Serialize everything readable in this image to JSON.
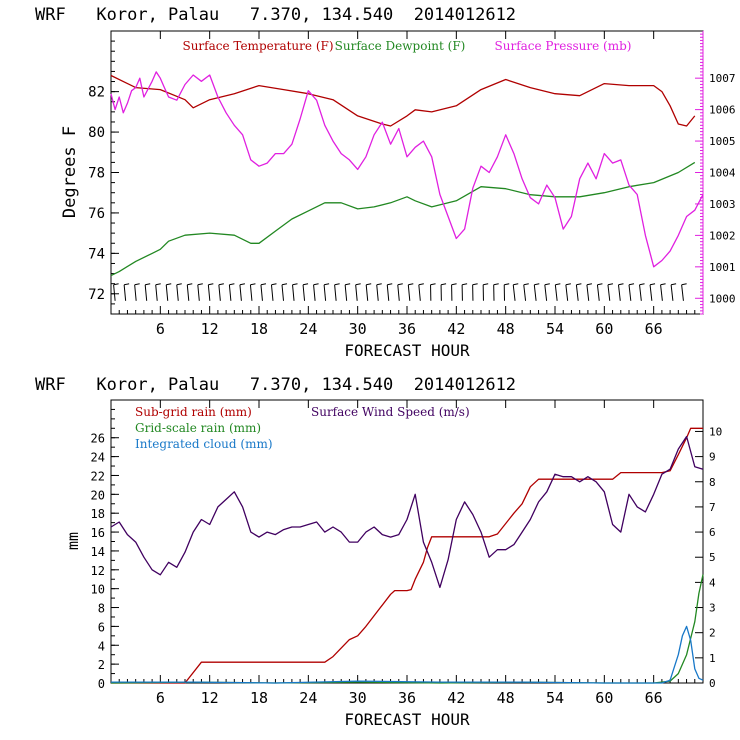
{
  "chart_data": [
    {
      "type": "line",
      "title": "WRF   Koror, Palau   7.370, 134.540  2014012612",
      "xlabel": "FORECAST HOUR",
      "ylabel": "Degrees F",
      "xlim": [
        0,
        72
      ],
      "ylim": [
        71,
        85
      ],
      "y2lim": [
        999.5,
        1008.5
      ],
      "x_ticks": [
        6,
        12,
        18,
        24,
        30,
        36,
        42,
        48,
        54,
        60,
        66
      ],
      "y_ticks": [
        72,
        74,
        76,
        78,
        80,
        82
      ],
      "y2_ticks": [
        1000,
        1001,
        1002,
        1003,
        1004,
        1005,
        1006,
        1007
      ],
      "legend": [
        "Surface Temperature (F)",
        "Surface Dewpoint (F)",
        "Surface Pressure (mb)"
      ],
      "colors": {
        "temperature": "#b00000",
        "dewpoint": "#228822",
        "pressure": "#e020e0"
      },
      "series": [
        {
          "name": "Surface Temperature (F)",
          "axis": "left",
          "x": [
            0,
            3,
            6,
            9,
            10,
            12,
            15,
            18,
            21,
            24,
            27,
            30,
            33,
            34,
            36,
            37,
            39,
            42,
            45,
            48,
            51,
            54,
            57,
            60,
            63,
            66,
            67,
            68,
            69,
            70,
            71
          ],
          "values": [
            82.8,
            82.2,
            82.1,
            81.6,
            81.2,
            81.6,
            81.9,
            82.3,
            82.1,
            81.9,
            81.6,
            80.8,
            80.4,
            80.3,
            80.8,
            81.1,
            81.0,
            81.3,
            82.1,
            82.6,
            82.2,
            81.9,
            81.8,
            82.4,
            82.3,
            82.3,
            82.0,
            81.3,
            80.4,
            80.3,
            80.8
          ]
        },
        {
          "name": "Surface Dewpoint (F)",
          "axis": "left",
          "x": [
            0,
            1,
            3,
            5,
            6,
            7,
            9,
            12,
            15,
            17,
            18,
            20,
            22,
            24,
            26,
            28,
            30,
            32,
            34,
            36,
            37,
            39,
            42,
            45,
            48,
            51,
            54,
            57,
            60,
            63,
            66,
            69,
            71
          ],
          "values": [
            72.9,
            73.1,
            73.6,
            74.0,
            74.2,
            74.6,
            74.9,
            75.0,
            74.9,
            74.5,
            74.5,
            75.1,
            75.7,
            76.1,
            76.5,
            76.5,
            76.2,
            76.3,
            76.5,
            76.8,
            76.6,
            76.3,
            76.6,
            77.3,
            77.2,
            76.9,
            76.8,
            76.8,
            77.0,
            77.3,
            77.5,
            78.0,
            78.5
          ]
        },
        {
          "name": "Surface Pressure (mb)",
          "axis": "right",
          "x": [
            0,
            0.5,
            1,
            1.5,
            2,
            2.5,
            3,
            3.5,
            4,
            5,
            5.5,
            6,
            6.5,
            7,
            8,
            9,
            10,
            11,
            12,
            13,
            14,
            15,
            16,
            17,
            18,
            19,
            20,
            21,
            22,
            23,
            24,
            25,
            26,
            27,
            28,
            29,
            30,
            31,
            32,
            33,
            34,
            35,
            36,
            37,
            38,
            39,
            40,
            41,
            42,
            43,
            44,
            45,
            46,
            47,
            48,
            49,
            50,
            51,
            52,
            53,
            54,
            55,
            56,
            57,
            58,
            59,
            60,
            61,
            62,
            63,
            64,
            65,
            66,
            67,
            68,
            69,
            70,
            71,
            72
          ],
          "values": [
            1006.5,
            1006.0,
            1006.4,
            1005.9,
            1006.2,
            1006.6,
            1006.7,
            1007.0,
            1006.4,
            1006.9,
            1007.2,
            1007.0,
            1006.7,
            1006.4,
            1006.3,
            1006.8,
            1007.1,
            1006.9,
            1007.1,
            1006.4,
            1005.9,
            1005.5,
            1005.2,
            1004.4,
            1004.2,
            1004.3,
            1004.6,
            1004.6,
            1004.9,
            1005.7,
            1006.6,
            1006.3,
            1005.5,
            1005.0,
            1004.6,
            1004.4,
            1004.1,
            1004.5,
            1005.2,
            1005.6,
            1004.9,
            1005.4,
            1004.5,
            1004.8,
            1005.0,
            1004.5,
            1003.3,
            1002.6,
            1001.9,
            1002.2,
            1003.5,
            1004.2,
            1004.0,
            1004.5,
            1005.2,
            1004.6,
            1003.8,
            1003.2,
            1003.0,
            1003.6,
            1003.2,
            1002.2,
            1002.6,
            1003.8,
            1004.3,
            1003.8,
            1004.6,
            1004.3,
            1004.4,
            1003.6,
            1003.3,
            1002.0,
            1001.0,
            1001.2,
            1001.5,
            1002.0,
            1002.6,
            1002.8,
            1003.3
          ]
        },
        {
          "name": "Wind Barbs",
          "type": "barbs",
          "x_start": 0.5,
          "x_step": 1.28,
          "count": 55
        }
      ]
    },
    {
      "type": "line",
      "title": "WRF   Koror, Palau   7.370, 134.540  2014012612",
      "xlabel": "FORECAST HOUR",
      "ylabel": "mm",
      "xlim": [
        0,
        72
      ],
      "ylim": [
        0,
        30
      ],
      "y2lim": [
        0,
        11.25
      ],
      "x_ticks": [
        6,
        12,
        18,
        24,
        30,
        36,
        42,
        48,
        54,
        60,
        66
      ],
      "y_ticks": [
        0,
        2,
        4,
        6,
        8,
        10,
        12,
        14,
        16,
        18,
        20,
        22,
        24,
        26
      ],
      "y2_ticks": [
        0,
        1,
        2,
        3,
        4,
        5,
        6,
        7,
        8,
        9,
        10
      ],
      "legend": [
        "Sub-grid rain (mm)",
        "Surface Wind Speed (m/s)",
        "Grid-scale rain (mm)",
        "Integrated cloud (mm)"
      ],
      "colors": {
        "subgrid": "#b00000",
        "wind": "#400060",
        "gridscale": "#228822",
        "cloud": "#1878c8"
      },
      "series": [
        {
          "name": "Sub-grid rain (mm)",
          "axis": "left",
          "x": [
            0,
            9,
            11,
            26,
            27,
            29,
            30,
            31,
            34,
            34.5,
            35,
            36,
            36.5,
            37,
            38,
            38.5,
            39,
            46,
            47,
            49,
            50,
            51,
            52,
            61,
            62,
            67,
            68,
            69,
            70,
            70.5,
            72
          ],
          "values": [
            0,
            0,
            2.2,
            2.2,
            2.8,
            4.6,
            5.0,
            6.0,
            9.4,
            9.8,
            9.8,
            9.8,
            9.9,
            11.0,
            12.8,
            14.4,
            15.5,
            15.5,
            15.8,
            18.0,
            19.0,
            20.8,
            21.6,
            21.6,
            22.3,
            22.3,
            22.5,
            24.2,
            26.0,
            27.0,
            27.0
          ]
        },
        {
          "name": "Surface Wind Speed (m/s)",
          "axis": "right",
          "x": [
            0,
            1,
            2,
            3,
            4,
            5,
            6,
            7,
            8,
            9,
            10,
            11,
            12,
            13,
            14,
            15,
            16,
            17,
            18,
            19,
            20,
            21,
            22,
            23,
            24,
            25,
            26,
            27,
            28,
            29,
            30,
            31,
            32,
            33,
            34,
            35,
            36,
            37,
            38,
            39,
            40,
            41,
            42,
            43,
            44,
            45,
            46,
            47,
            48,
            49,
            50,
            51,
            52,
            53,
            54,
            55,
            56,
            57,
            58,
            59,
            60,
            61,
            62,
            63,
            64,
            65,
            66,
            67,
            68,
            69,
            70,
            71,
            72
          ],
          "values": [
            6.2,
            6.4,
            5.9,
            5.6,
            5.0,
            4.5,
            4.3,
            4.8,
            4.6,
            5.2,
            6.0,
            6.5,
            6.3,
            7.0,
            7.3,
            7.6,
            7.0,
            6.0,
            5.8,
            6.0,
            5.9,
            6.1,
            6.2,
            6.2,
            6.3,
            6.4,
            6.0,
            6.2,
            6.0,
            5.6,
            5.6,
            6.0,
            6.2,
            5.9,
            5.8,
            5.9,
            6.5,
            7.5,
            5.6,
            4.8,
            3.8,
            4.9,
            6.5,
            7.2,
            6.7,
            6.0,
            5.0,
            5.3,
            5.3,
            5.5,
            6.0,
            6.5,
            7.2,
            7.6,
            8.3,
            8.2,
            8.2,
            8.0,
            8.2,
            8.0,
            7.6,
            6.3,
            6.0,
            7.5,
            7.0,
            6.8,
            7.5,
            8.3,
            8.5,
            9.3,
            9.8,
            8.6,
            8.5
          ]
        },
        {
          "name": "Grid-scale rain (mm)",
          "axis": "left",
          "x": [
            0,
            10,
            20,
            30,
            40,
            50,
            60,
            66,
            68,
            69,
            70,
            71,
            71.5,
            72
          ],
          "values": [
            0.0,
            0.1,
            0.0,
            0.1,
            0.0,
            0.1,
            0.0,
            0.0,
            0.2,
            1.0,
            3.0,
            6.5,
            9.5,
            11.5
          ]
        },
        {
          "name": "Integrated cloud (mm)",
          "axis": "left",
          "x": [
            0,
            10,
            20,
            30,
            40,
            50,
            60,
            67,
            68,
            69,
            69.5,
            70,
            70.5,
            71,
            71.5,
            72
          ],
          "values": [
            0.1,
            0.1,
            0.0,
            0.2,
            0.1,
            0.1,
            0.0,
            0.0,
            0.3,
            3.0,
            5.0,
            6.0,
            4.5,
            1.5,
            0.5,
            0.3
          ]
        }
      ]
    }
  ]
}
